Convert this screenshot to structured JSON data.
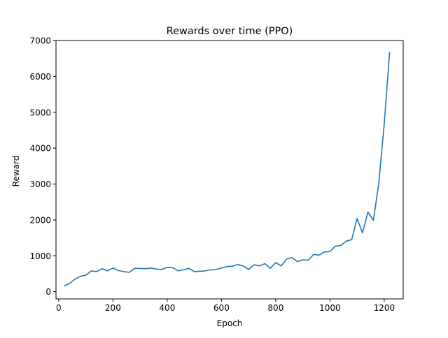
{
  "chart_data": {
    "type": "line",
    "title": "Rewards over time (PPO)",
    "xlabel": "Epoch",
    "ylabel": "Reward",
    "xlim": [
      -10,
      1270
    ],
    "ylim": [
      -200,
      7000
    ],
    "xticks": [
      0,
      200,
      400,
      600,
      800,
      1000,
      1200
    ],
    "yticks": [
      0,
      1000,
      2000,
      3000,
      4000,
      5000,
      6000,
      7000
    ],
    "grid": false,
    "series": [
      {
        "color": "#1f77b4",
        "x": [
          20,
          40,
          60,
          80,
          100,
          120,
          140,
          160,
          180,
          200,
          220,
          240,
          260,
          280,
          300,
          320,
          340,
          360,
          380,
          400,
          420,
          440,
          460,
          480,
          500,
          520,
          540,
          560,
          580,
          600,
          620,
          640,
          660,
          680,
          700,
          720,
          740,
          760,
          780,
          800,
          820,
          840,
          860,
          880,
          900,
          920,
          940,
          960,
          980,
          1000,
          1020,
          1040,
          1060,
          1080,
          1100,
          1120,
          1140,
          1160,
          1180,
          1200,
          1220
        ],
        "y": [
          160,
          230,
          350,
          430,
          460,
          580,
          560,
          640,
          580,
          660,
          590,
          560,
          540,
          650,
          650,
          640,
          660,
          630,
          620,
          680,
          670,
          580,
          610,
          650,
          560,
          570,
          580,
          610,
          620,
          660,
          700,
          710,
          760,
          720,
          620,
          750,
          720,
          780,
          650,
          810,
          720,
          910,
          950,
          840,
          890,
          880,
          1040,
          1020,
          1110,
          1120,
          1270,
          1290,
          1410,
          1450,
          2040,
          1640,
          2220,
          1990,
          3020,
          4680,
          6680
        ]
      }
    ]
  }
}
